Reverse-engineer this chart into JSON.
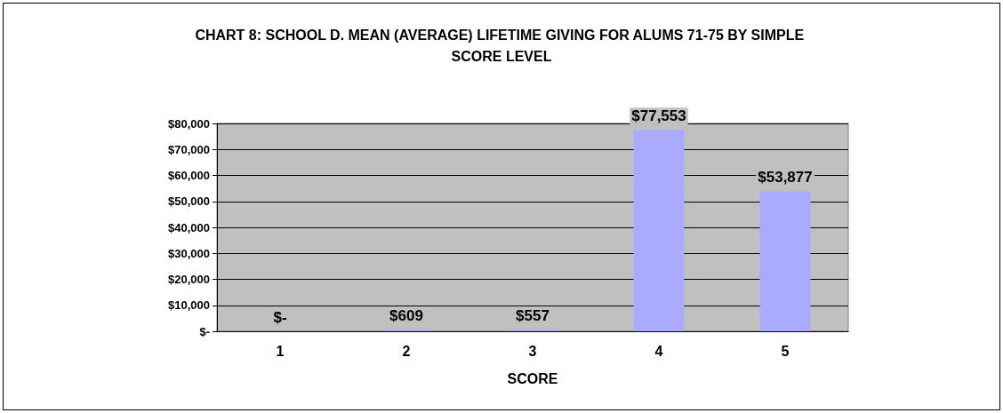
{
  "chart_data": {
    "type": "bar",
    "title": "CHART 8: SCHOOL D. MEAN (AVERAGE) LIFETIME GIVING FOR ALUMS 71-75 BY SIMPLE SCORE LEVEL",
    "xlabel": "SCORE",
    "categories": [
      "1",
      "2",
      "3",
      "4",
      "5"
    ],
    "values": [
      0,
      609,
      557,
      77553,
      53877
    ],
    "value_labels": [
      "$-",
      "$609",
      "$557",
      "$77,553",
      "$53,877"
    ],
    "color": "#aaaaff",
    "ylim": [
      0,
      80000
    ],
    "yticks": [
      {
        "value": 0,
        "label": "$-"
      },
      {
        "value": 10000,
        "label": "$10,000"
      },
      {
        "value": 20000,
        "label": "$20,000"
      },
      {
        "value": 30000,
        "label": "$30,000"
      },
      {
        "value": 40000,
        "label": "$40,000"
      },
      {
        "value": 50000,
        "label": "$50,000"
      },
      {
        "value": 60000,
        "label": "$60,000"
      },
      {
        "value": 70000,
        "label": "$70,000"
      },
      {
        "value": 80000,
        "label": "$80,000"
      }
    ],
    "grid": "y"
  }
}
